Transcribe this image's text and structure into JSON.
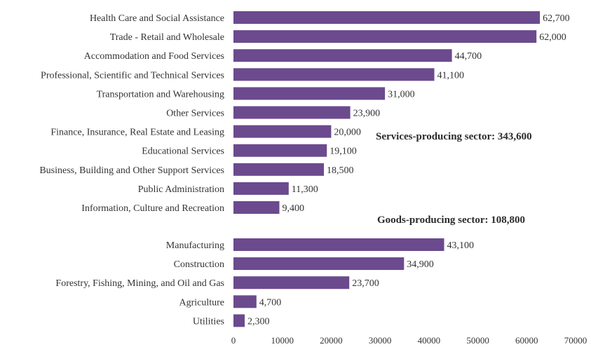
{
  "chart_data": {
    "type": "bar",
    "orientation": "horizontal",
    "bar_color": "#6b4a8e",
    "title": "",
    "xlabel": "",
    "ylabel": "",
    "xlim": [
      0,
      70000
    ],
    "xticks": [
      0,
      10000,
      20000,
      30000,
      40000,
      50000,
      60000,
      70000
    ],
    "xtick_labels": [
      "0",
      "10000",
      "20000",
      "30000",
      "40000",
      "50000",
      "60000",
      "70000"
    ],
    "grid": false,
    "groups": [
      {
        "name": "Services-producing sector",
        "annotation": "Services-producing sector: 343,600",
        "bars": [
          {
            "category": "Health Care and Social Assistance",
            "value": 62700,
            "label": "62,700"
          },
          {
            "category": "Trade - Retail and Wholesale",
            "value": 62000,
            "label": "62,000"
          },
          {
            "category": "Accommodation and Food Services",
            "value": 44700,
            "label": "44,700"
          },
          {
            "category": "Professional, Scientific and Technical Services",
            "value": 41100,
            "label": "41,100"
          },
          {
            "category": "Transportation and Warehousing",
            "value": 31000,
            "label": "31,000"
          },
          {
            "category": "Other Services",
            "value": 23900,
            "label": "23,900"
          },
          {
            "category": "Finance, Insurance, Real Estate and Leasing",
            "value": 20000,
            "label": "20,000"
          },
          {
            "category": "Educational Services",
            "value": 19100,
            "label": "19,100"
          },
          {
            "category": "Business, Building and Other Support Services",
            "value": 18500,
            "label": "18,500"
          },
          {
            "category": "Public Administration",
            "value": 11300,
            "label": "11,300"
          },
          {
            "category": "Information, Culture and Recreation",
            "value": 9400,
            "label": "9,400"
          }
        ]
      },
      {
        "name": "Goods-producing sector",
        "annotation": "Goods-producing sector: 108,800",
        "bars": [
          {
            "category": "Manufacturing",
            "value": 43100,
            "label": "43,100"
          },
          {
            "category": "Construction",
            "value": 34900,
            "label": "34,900"
          },
          {
            "category": "Forestry, Fishing, Mining, and Oil and Gas",
            "value": 23700,
            "label": "23,700"
          },
          {
            "category": "Agriculture",
            "value": 4700,
            "label": "4,700"
          },
          {
            "category": "Utilities",
            "value": 2300,
            "label": "2,300"
          }
        ]
      }
    ]
  }
}
